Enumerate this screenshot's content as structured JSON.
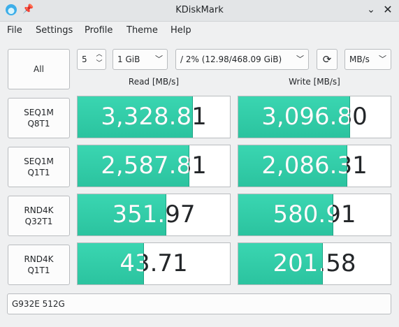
{
  "window": {
    "title": "KDiskMark"
  },
  "menu": [
    "File",
    "Settings",
    "Profile",
    "Theme",
    "Help"
  ],
  "controls": {
    "all_label": "All",
    "runs_value": "5",
    "size_value": "1 GiB",
    "target_value": "/ 2% (12.98/468.09 GiB)",
    "unit_value": "MB/s"
  },
  "headers": {
    "read": "Read [MB/s]",
    "write": "Write [MB/s]"
  },
  "tests": [
    {
      "line1": "SEQ1M",
      "line2": "Q8T1",
      "read": "3,328.81",
      "write": "3,096.80",
      "read_fill": 0.75,
      "write_fill": 0.73
    },
    {
      "line1": "SEQ1M",
      "line2": "Q1T1",
      "read": "2,587.81",
      "write": "2,086.31",
      "read_fill": 0.73,
      "write_fill": 0.71
    },
    {
      "line1": "RND4K",
      "line2": "Q32T1",
      "read": "351.97",
      "write": "580.91",
      "read_fill": 0.58,
      "write_fill": 0.62
    },
    {
      "line1": "RND4K",
      "line2": "Q1T1",
      "read": "43.71",
      "write": "201.58",
      "read_fill": 0.43,
      "write_fill": 0.55
    }
  ],
  "device": "G932E 512G",
  "colors": {
    "bar": "#2dc9a3",
    "background": "#eff0f1"
  }
}
